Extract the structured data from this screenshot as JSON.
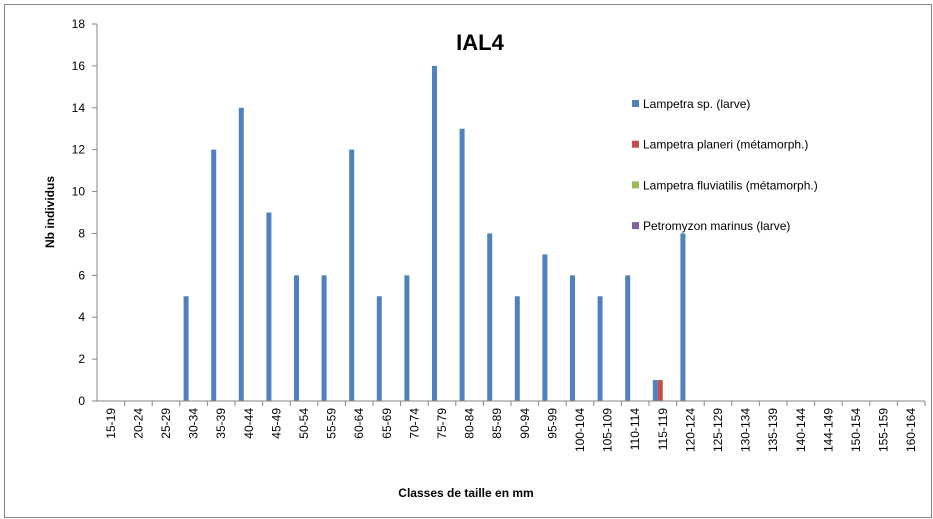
{
  "chart_data": {
    "type": "bar",
    "title": "IAL4",
    "x_label": "Classes de taille en mm",
    "y_label": "Nb individus",
    "categories": [
      "15-19",
      "20-24",
      "25-29",
      "30-34",
      "35-39",
      "40-44",
      "45-49",
      "50-54",
      "55-59",
      "60-64",
      "65-69",
      "70-74",
      "75-79",
      "80-84",
      "85-89",
      "90-94",
      "95-99",
      "100-104",
      "105-109",
      "110-114",
      "115-119",
      "120-124",
      "125-129",
      "130-134",
      "135-139",
      "140-144",
      "144-149",
      "150-154",
      "155-159",
      "160-164"
    ],
    "series": [
      {
        "name": "Lampetra sp. (larve)",
        "color": "#4f81bd",
        "values": [
          0,
          0,
          0,
          5,
          12,
          14,
          9,
          6,
          6,
          12,
          5,
          6,
          16,
          13,
          8,
          5,
          7,
          6,
          5,
          6,
          1,
          8,
          0,
          0,
          0,
          0,
          0,
          0,
          0,
          0
        ]
      },
      {
        "name": "Lampetra planeri (métamorph.)",
        "color": "#c0504d",
        "values": [
          0,
          0,
          0,
          0,
          0,
          0,
          0,
          0,
          0,
          0,
          0,
          0,
          0,
          0,
          0,
          0,
          0,
          0,
          0,
          0,
          1,
          0,
          0,
          0,
          0,
          0,
          0,
          0,
          0,
          0
        ]
      },
      {
        "name": "Lampetra fluviatilis (métamorph.)",
        "color": "#9bbb59",
        "values": [
          0,
          0,
          0,
          0,
          0,
          0,
          0,
          0,
          0,
          0,
          0,
          0,
          0,
          0,
          0,
          0,
          0,
          0,
          0,
          0,
          0,
          0,
          0,
          0,
          0,
          0,
          0,
          0,
          0,
          0
        ]
      },
      {
        "name": "Petromyzon marinus (larve)",
        "color": "#8064a2",
        "values": [
          0,
          0,
          0,
          0,
          0,
          0,
          0,
          0,
          0,
          0,
          0,
          0,
          0,
          0,
          0,
          0,
          0,
          0,
          0,
          0,
          0,
          0,
          0,
          0,
          0,
          0,
          0,
          0,
          0,
          0
        ]
      }
    ],
    "ylim": [
      0,
      18
    ],
    "yticks": [
      0,
      2,
      4,
      6,
      8,
      10,
      12,
      14,
      16,
      18
    ],
    "grid": false,
    "legend": "right"
  }
}
